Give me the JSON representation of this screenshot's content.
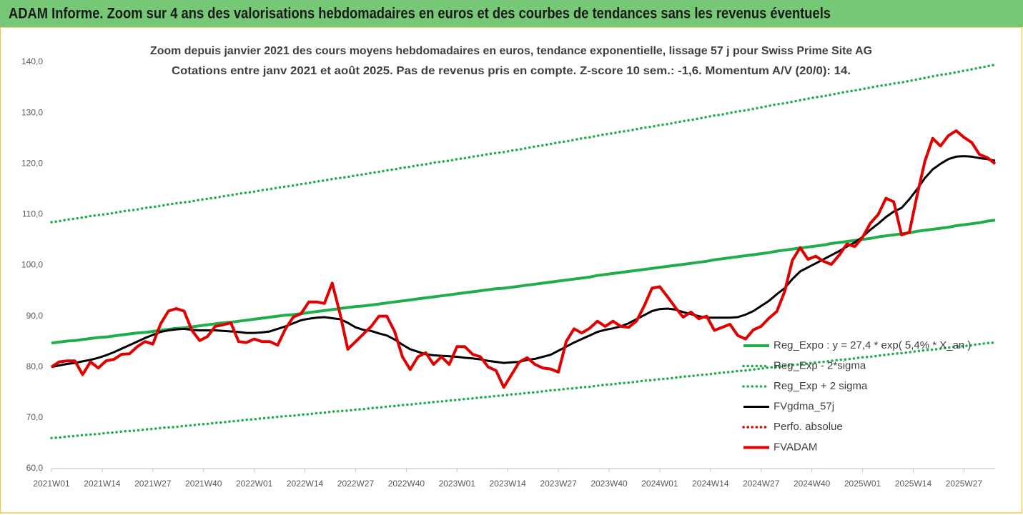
{
  "chart_data": {
    "type": "line",
    "title": "ADAM Informe. Zoom sur 4 ans des valorisations hebdomadaires en euros et des courbes de tendances sans les revenus éventuels",
    "subtitle": [
      "Zoom depuis janvier 2021 des cours moyens hebdomadaires en euros, tendance exponentielle, lissage 57 j pour Swiss Prime Site AG",
      "Cotations entre janv 2021 et août 2025.  Pas de revenus pris en compte. Z-score 10 sem.: -1,6. Momentum A/V (20/0): 14."
    ],
    "x": [
      0,
      2,
      4,
      6,
      8,
      10,
      12,
      14,
      16,
      18,
      20,
      22,
      24,
      26,
      28,
      30,
      32,
      34,
      36,
      38,
      40,
      42,
      44,
      46,
      48,
      50,
      52,
      54,
      56,
      58,
      60,
      62,
      64,
      66,
      68,
      70,
      72,
      74,
      76,
      78,
      80,
      82,
      84,
      86,
      88,
      90,
      92,
      94,
      96,
      98,
      100,
      102,
      104,
      106,
      108,
      110,
      112,
      114,
      116,
      118,
      120,
      122,
      124,
      126,
      128,
      130,
      132,
      134,
      136,
      138,
      140,
      142,
      144,
      146,
      148,
      150,
      152,
      154,
      156,
      158,
      160,
      162,
      164,
      166,
      168,
      170,
      172,
      174,
      176,
      178,
      180,
      182,
      184,
      186,
      188,
      190,
      192,
      194,
      196,
      198,
      200,
      202,
      204,
      206,
      208,
      210,
      212,
      214,
      216,
      218,
      220,
      222,
      224,
      226,
      228,
      230,
      232,
      234,
      236,
      238,
      240,
      242
    ],
    "xlim": [
      0,
      242
    ],
    "xticks": [
      {
        "value": 0,
        "label": "2021W01"
      },
      {
        "value": 13,
        "label": "2021W14"
      },
      {
        "value": 26,
        "label": "2021W27"
      },
      {
        "value": 39,
        "label": "2021W40"
      },
      {
        "value": 52,
        "label": "2022W01"
      },
      {
        "value": 65,
        "label": "2022W14"
      },
      {
        "value": 78,
        "label": "2022W27"
      },
      {
        "value": 91,
        "label": "2022W40"
      },
      {
        "value": 104,
        "label": "2023W01"
      },
      {
        "value": 117,
        "label": "2023W14"
      },
      {
        "value": 130,
        "label": "2023W27"
      },
      {
        "value": 143,
        "label": "2023W40"
      },
      {
        "value": 156,
        "label": "2024W01"
      },
      {
        "value": 169,
        "label": "2024W14"
      },
      {
        "value": 182,
        "label": "2024W27"
      },
      {
        "value": 195,
        "label": "2024W40"
      },
      {
        "value": 208,
        "label": "2025W01"
      },
      {
        "value": 221,
        "label": "2025W14"
      },
      {
        "value": 234,
        "label": "2025W27"
      }
    ],
    "ylim": [
      60,
      140
    ],
    "yticks": [
      {
        "value": 60,
        "label": "60,0"
      },
      {
        "value": 70,
        "label": "70,0"
      },
      {
        "value": 80,
        "label": "80,0"
      },
      {
        "value": 90,
        "label": "90,0"
      },
      {
        "value": 100,
        "label": "100,0"
      },
      {
        "value": 110,
        "label": "110,0"
      },
      {
        "value": 120,
        "label": "120,0"
      },
      {
        "value": 130,
        "label": "130,0"
      },
      {
        "value": 140,
        "label": "140,0"
      }
    ],
    "grid": false,
    "legend": "right",
    "series": [
      {
        "name": "Reg_Expo : y = 27,4 * exp( 5,4% * X_an )",
        "color": "#1fae4b",
        "style": "solid",
        "values": [
          84.7,
          84.9,
          85.1,
          85.2,
          85.4,
          85.6,
          85.8,
          85.9,
          86.1,
          86.3,
          86.5,
          86.7,
          86.8,
          87.0,
          87.2,
          87.4,
          87.6,
          87.7,
          87.9,
          88.1,
          88.3,
          88.5,
          88.7,
          88.8,
          89.0,
          89.2,
          89.4,
          89.6,
          89.8,
          90.0,
          90.2,
          90.3,
          90.5,
          90.7,
          90.9,
          91.1,
          91.3,
          91.5,
          91.7,
          91.9,
          92.0,
          92.2,
          92.4,
          92.6,
          92.8,
          93.0,
          93.2,
          93.4,
          93.6,
          93.8,
          94.0,
          94.2,
          94.4,
          94.6,
          94.8,
          95.0,
          95.2,
          95.4,
          95.5,
          95.7,
          95.9,
          96.1,
          96.3,
          96.5,
          96.7,
          96.9,
          97.1,
          97.3,
          97.5,
          97.7,
          98.0,
          98.2,
          98.4,
          98.6,
          98.8,
          99.0,
          99.2,
          99.4,
          99.6,
          99.8,
          100.0,
          100.2,
          100.4,
          100.6,
          100.8,
          101.1,
          101.3,
          101.5,
          101.7,
          101.9,
          102.1,
          102.3,
          102.5,
          102.8,
          103.0,
          103.2,
          103.4,
          103.6,
          103.8,
          104.0,
          104.3,
          104.5,
          104.7,
          104.9,
          105.1,
          105.3,
          105.6,
          105.8,
          106.0,
          106.2,
          106.4,
          106.7,
          106.9,
          107.1,
          107.3,
          107.5,
          107.8,
          108.0,
          108.2,
          108.4,
          108.7,
          108.9
        ]
      },
      {
        "name": "Reg_Exp - 2*sigma",
        "color": "#1fae4b",
        "style": "dotted",
        "values": [
          66.0,
          66.1,
          66.3,
          66.4,
          66.6,
          66.7,
          66.8,
          67.0,
          67.1,
          67.3,
          67.4,
          67.5,
          67.7,
          67.8,
          68.0,
          68.1,
          68.2,
          68.4,
          68.5,
          68.7,
          68.8,
          69.0,
          69.1,
          69.3,
          69.4,
          69.6,
          69.7,
          69.9,
          70.0,
          70.2,
          70.3,
          70.4,
          70.6,
          70.7,
          70.9,
          71.0,
          71.2,
          71.3,
          71.4,
          71.6,
          71.7,
          71.9,
          72.0,
          72.2,
          72.3,
          72.5,
          72.6,
          72.8,
          72.9,
          73.1,
          73.2,
          73.4,
          73.5,
          73.7,
          73.8,
          74.0,
          74.1,
          74.3,
          74.4,
          74.6,
          74.7,
          74.9,
          75.0,
          75.2,
          75.4,
          75.5,
          75.7,
          75.8,
          76.0,
          76.1,
          76.3,
          76.5,
          76.6,
          76.8,
          76.9,
          77.1,
          77.3,
          77.4,
          77.6,
          77.7,
          77.9,
          78.1,
          78.2,
          78.4,
          78.5,
          78.7,
          78.9,
          79.0,
          79.2,
          79.3,
          79.5,
          79.7,
          79.9,
          80.0,
          80.2,
          80.4,
          80.5,
          80.7,
          80.9,
          81.0,
          81.2,
          81.4,
          81.5,
          81.7,
          81.9,
          82.0,
          82.2,
          82.4,
          82.6,
          82.7,
          82.9,
          83.1,
          83.3,
          83.4,
          83.6,
          83.8,
          84.0,
          84.1,
          84.3,
          84.5,
          84.7,
          84.8
        ]
      },
      {
        "name": "Reg_Exp + 2 sigma",
        "color": "#1fae4b",
        "style": "dotted",
        "values": [
          108.5,
          108.7,
          109.0,
          109.2,
          109.4,
          109.7,
          109.9,
          110.1,
          110.3,
          110.6,
          110.8,
          111.0,
          111.3,
          111.5,
          111.7,
          112.0,
          112.2,
          112.4,
          112.6,
          112.9,
          113.1,
          113.3,
          113.6,
          113.8,
          114.1,
          114.3,
          114.5,
          114.8,
          115.0,
          115.3,
          115.5,
          115.7,
          116.0,
          116.2,
          116.5,
          116.7,
          117.0,
          117.2,
          117.4,
          117.7,
          117.9,
          118.2,
          118.4,
          118.7,
          118.9,
          119.2,
          119.4,
          119.7,
          119.9,
          120.2,
          120.4,
          120.6,
          120.9,
          121.1,
          121.4,
          121.6,
          121.9,
          122.1,
          122.3,
          122.6,
          122.8,
          123.1,
          123.4,
          123.6,
          123.9,
          124.2,
          124.4,
          124.7,
          125.0,
          125.2,
          125.5,
          125.8,
          126.0,
          126.3,
          126.5,
          126.8,
          127.1,
          127.3,
          127.6,
          127.8,
          128.1,
          128.4,
          128.6,
          128.9,
          129.2,
          129.5,
          129.7,
          130.0,
          130.3,
          130.5,
          130.8,
          131.1,
          131.4,
          131.7,
          131.9,
          132.2,
          132.5,
          132.8,
          133.1,
          133.3,
          133.6,
          133.9,
          134.2,
          134.4,
          134.7,
          135.0,
          135.3,
          135.5,
          135.8,
          136.0,
          136.3,
          136.6,
          136.9,
          137.2,
          137.5,
          137.7,
          138.0,
          138.3,
          138.6,
          138.9,
          139.2,
          139.5
        ]
      },
      {
        "name": "FVgdma_57j",
        "color": "#000000",
        "style": "solid",
        "values": [
          80.0,
          80.3,
          80.6,
          80.8,
          81.1,
          81.4,
          81.8,
          82.3,
          82.9,
          83.6,
          84.3,
          85.0,
          85.7,
          86.3,
          86.9,
          87.2,
          87.4,
          87.5,
          87.3,
          87.2,
          87.2,
          87.2,
          87.1,
          87.0,
          86.9,
          86.7,
          86.7,
          86.8,
          87.0,
          87.5,
          88.0,
          88.6,
          89.2,
          89.5,
          89.7,
          89.8,
          89.6,
          89.4,
          88.7,
          87.8,
          87.3,
          87.1,
          86.6,
          86.2,
          85.4,
          84.4,
          83.5,
          83.0,
          82.5,
          82.3,
          82.2,
          82.1,
          82.0,
          81.8,
          81.7,
          81.5,
          81.2,
          81.0,
          80.8,
          80.9,
          81.0,
          81.4,
          81.6,
          82.0,
          82.4,
          83.2,
          84.0,
          84.8,
          85.5,
          86.2,
          86.9,
          87.3,
          87.6,
          88.0,
          88.6,
          89.4,
          90.2,
          91.0,
          91.4,
          91.5,
          91.3,
          90.8,
          90.4,
          90.0,
          89.7,
          89.7,
          89.7,
          89.7,
          89.8,
          90.3,
          91.0,
          92.0,
          93.0,
          94.3,
          95.5,
          97.3,
          98.8,
          99.6,
          100.4,
          101.2,
          102.0,
          102.8,
          103.7,
          104.5,
          105.6,
          107.0,
          108.2,
          109.5,
          110.6,
          111.3,
          113.0,
          115.0,
          117.2,
          118.9,
          120.0,
          120.9,
          121.4,
          121.5,
          121.4,
          121.1,
          120.9,
          120.6
        ]
      },
      {
        "name": "Perfo. absolue",
        "color": "#e00000",
        "style": "dotted"
      },
      {
        "name": "FVADAM",
        "color": "#e00000",
        "style": "solid",
        "values": [
          80.0,
          81.0,
          81.2,
          81.2,
          78.5,
          81.0,
          79.8,
          81.2,
          81.5,
          82.5,
          82.6,
          84.0,
          85.0,
          84.5,
          88.5,
          91.0,
          91.5,
          91.0,
          87.2,
          85.2,
          86.0,
          88.0,
          88.3,
          88.7,
          85.0,
          84.8,
          85.5,
          85.0,
          85.0,
          84.3,
          87.5,
          89.8,
          90.5,
          92.8,
          92.8,
          92.5,
          96.5,
          90.5,
          83.5,
          85.0,
          86.5,
          88.0,
          90.0,
          90.0,
          87.0,
          82.0,
          79.5,
          82.0,
          82.8,
          80.5,
          82.0,
          80.5,
          84.0,
          84.0,
          82.5,
          82.0,
          80.0,
          79.3,
          76.0,
          78.5,
          81.0,
          81.8,
          80.5,
          79.8,
          79.6,
          79.0,
          85.0,
          87.5,
          86.7,
          87.6,
          89.0,
          88.0,
          89.0,
          88.0,
          87.8,
          89.0,
          92.0,
          95.5,
          95.8,
          93.8,
          91.7,
          89.8,
          90.8,
          89.5,
          90.0,
          87.2,
          87.8,
          88.4,
          86.2,
          85.5,
          87.3,
          88.0,
          89.6,
          90.9,
          94.8,
          101.0,
          103.5,
          101.2,
          101.8,
          100.8,
          100.2,
          102.0,
          104.2,
          103.7,
          105.5,
          108.3,
          110.0,
          113.2,
          112.5,
          106.0,
          106.5,
          113.8,
          120.5,
          125.0,
          123.5,
          125.5,
          126.5,
          125.2,
          124.2,
          121.8,
          121.2,
          120.0
        ]
      }
    ]
  }
}
